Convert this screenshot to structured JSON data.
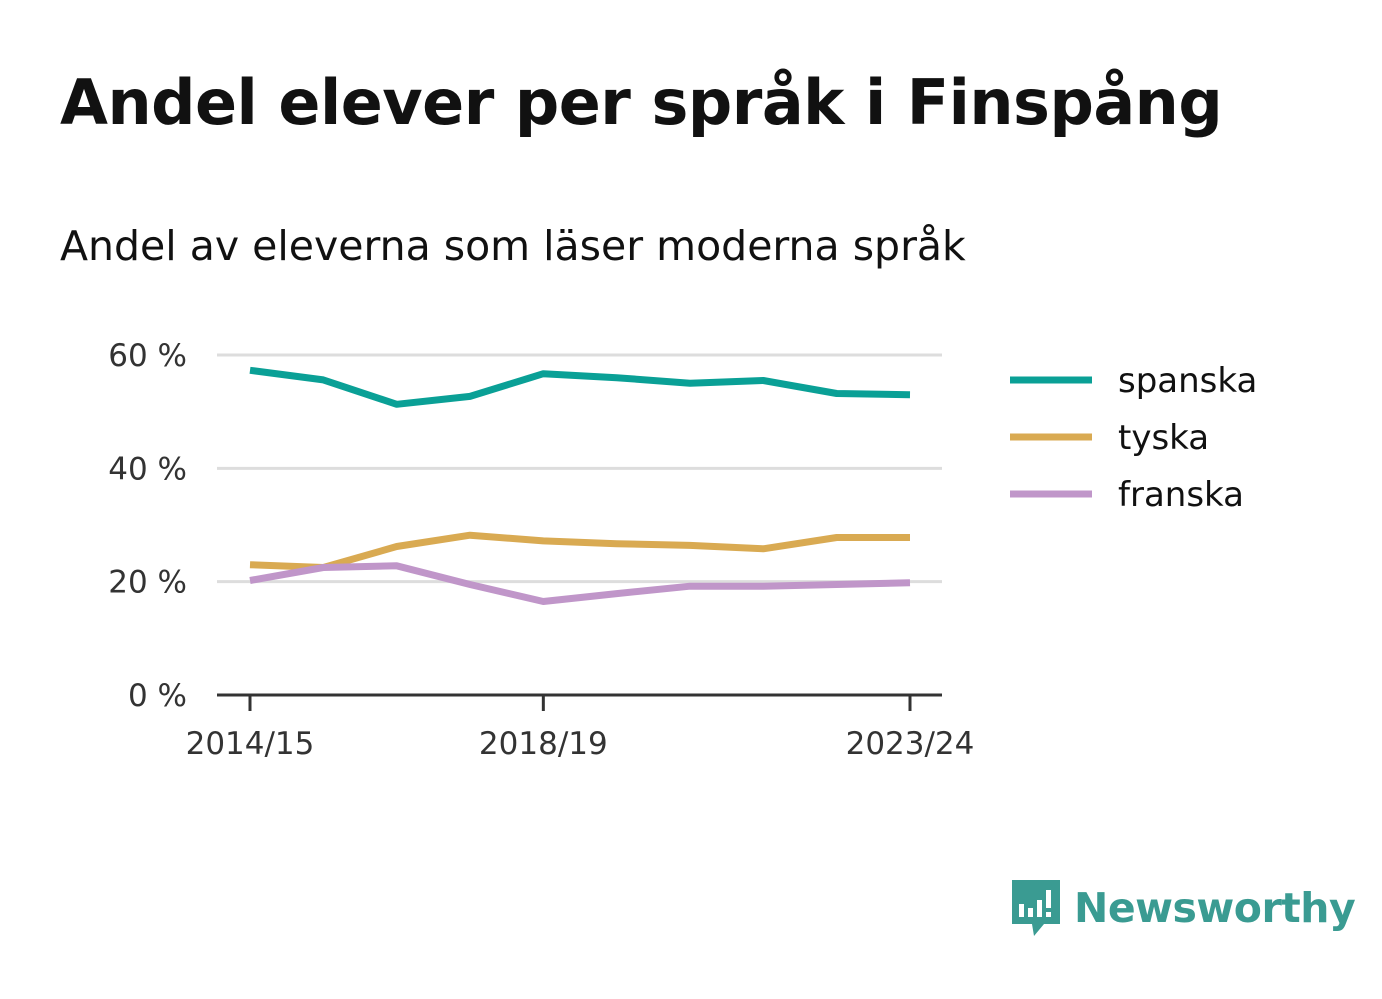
{
  "title": "Andel elever per språk i Finspång",
  "subtitle": "Andel av eleverna som läser moderna språk",
  "brand": {
    "name": "Newsworthy",
    "icon": "bar-chart-speech-icon",
    "color": "#3a9b92"
  },
  "chart_data": {
    "type": "line",
    "x": [
      "2014/15",
      "2015/16",
      "2016/17",
      "2017/18",
      "2018/19",
      "2019/20",
      "2020/21",
      "2021/22",
      "2022/23",
      "2023/24"
    ],
    "x_tick_labels": [
      "2014/15",
      "2018/19",
      "2023/24"
    ],
    "y_tick_labels": [
      "0 %",
      "20 %",
      "40 %",
      "60 %"
    ],
    "y_ticks": [
      0,
      20,
      40,
      60
    ],
    "ylim": [
      0,
      60
    ],
    "grid": true,
    "legend_position": "right",
    "series": [
      {
        "name": "spanska",
        "color": "#0aa096",
        "values": [
          57.3,
          55.6,
          51.3,
          52.7,
          56.7,
          56.0,
          55.0,
          55.5,
          53.2,
          53.0
        ]
      },
      {
        "name": "tyska",
        "color": "#d9aa52",
        "values": [
          23.0,
          22.5,
          26.2,
          28.2,
          27.2,
          26.7,
          26.4,
          25.8,
          27.8,
          27.8
        ]
      },
      {
        "name": "franska",
        "color": "#c096c9",
        "values": [
          20.2,
          22.5,
          22.8,
          19.5,
          16.5,
          17.9,
          19.2,
          19.2,
          19.5,
          19.8
        ]
      }
    ]
  }
}
